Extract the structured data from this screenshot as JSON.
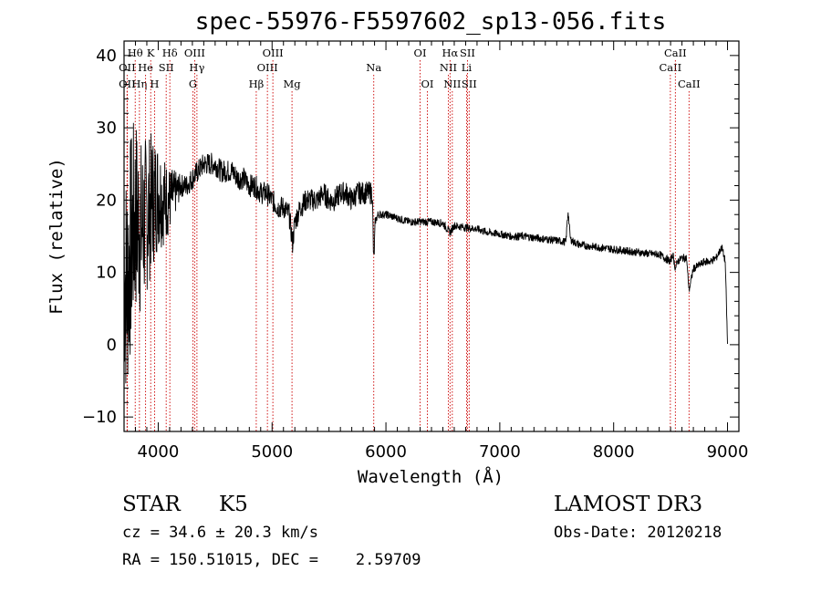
{
  "chart_data": {
    "type": "line",
    "title": "spec-55976-F5597602_sp13-056.fits",
    "xlabel": "Wavelength (Å)",
    "ylabel": "Flux (relative)",
    "xlim": [
      3700,
      9100
    ],
    "ylim": [
      -12,
      42
    ],
    "xticks": [
      4000,
      5000,
      6000,
      7000,
      8000,
      9000
    ],
    "yticks": [
      -10,
      0,
      10,
      20,
      30,
      40
    ],
    "grid": false,
    "series": [
      {
        "name": "spectrum",
        "noise_region": {
          "x_start": 3700,
          "x_end": 4200,
          "amplitude": 8
        },
        "x": [
          3700,
          3720,
          3760,
          3800,
          3850,
          3900,
          3950,
          4000,
          4050,
          4100,
          4150,
          4200,
          4250,
          4300,
          4350,
          4400,
          4450,
          4500,
          4550,
          4600,
          4650,
          4700,
          4750,
          4800,
          4850,
          4900,
          4950,
          5000,
          5050,
          5100,
          5150,
          5180,
          5200,
          5250,
          5300,
          5350,
          5400,
          5450,
          5500,
          5550,
          5600,
          5650,
          5700,
          5750,
          5800,
          5850,
          5880,
          5893,
          5905,
          5930,
          6000,
          6100,
          6200,
          6300,
          6400,
          6500,
          6563,
          6600,
          6700,
          6800,
          6900,
          7000,
          7100,
          7200,
          7300,
          7400,
          7500,
          7580,
          7600,
          7620,
          7650,
          7700,
          7800,
          7900,
          8000,
          8100,
          8200,
          8300,
          8400,
          8498,
          8520,
          8542,
          8560,
          8600,
          8640,
          8662,
          8700,
          8750,
          8800,
          8850,
          8900,
          8950,
          8980,
          9000
        ],
        "y": [
          12,
          8,
          14,
          18,
          16,
          18,
          20,
          21,
          20,
          20,
          21,
          22,
          22,
          23,
          24,
          25,
          25,
          25,
          24,
          24,
          24,
          23,
          23,
          22,
          22,
          21,
          21,
          20,
          19,
          19,
          18,
          14,
          17,
          19,
          20,
          20,
          20,
          21,
          20,
          20,
          21,
          21,
          20,
          21,
          21,
          21,
          21,
          11,
          17,
          18,
          18,
          17.5,
          17,
          17,
          17,
          16.8,
          15.5,
          16.5,
          16.2,
          16,
          15.5,
          15.3,
          15,
          15,
          14.8,
          14.6,
          14.4,
          14.2,
          18.5,
          14.6,
          14.2,
          13.8,
          13.6,
          13.4,
          13.2,
          13,
          12.8,
          12.6,
          12.5,
          11.5,
          12.5,
          10.5,
          11.5,
          12,
          12,
          7.5,
          10.5,
          11,
          11.5,
          11.5,
          12,
          13.5,
          11.5,
          0
        ]
      }
    ],
    "line_markers": [
      {
        "label": "OII",
        "x": 3727,
        "row": 2
      },
      {
        "label": "OII",
        "x": 3727,
        "row": 3
      },
      {
        "label": "Hθ",
        "x": 3798,
        "row": 1
      },
      {
        "label": "Hη",
        "x": 3835,
        "row": 3
      },
      {
        "label": "He",
        "x": 3889,
        "row": 2
      },
      {
        "label": "K",
        "x": 3934,
        "row": 1
      },
      {
        "label": "H",
        "x": 3968,
        "row": 3
      },
      {
        "label": "SII",
        "x": 4070,
        "row": 2
      },
      {
        "label": "Hδ",
        "x": 4102,
        "row": 1
      },
      {
        "label": "OIII",
        "x": 4320,
        "row": 1
      },
      {
        "label": "Hγ",
        "x": 4340,
        "row": 2
      },
      {
        "label": "G",
        "x": 4305,
        "row": 3
      },
      {
        "label": "Hβ",
        "x": 4861,
        "row": 3
      },
      {
        "label": "OIII",
        "x": 4959,
        "row": 2
      },
      {
        "label": "OIII",
        "x": 5007,
        "row": 1
      },
      {
        "label": "Mg",
        "x": 5175,
        "row": 3
      },
      {
        "label": "Na",
        "x": 5893,
        "row": 2
      },
      {
        "label": "OI",
        "x": 6300,
        "row": 1
      },
      {
        "label": "OI",
        "x": 6364,
        "row": 3
      },
      {
        "label": "NII",
        "x": 6548,
        "row": 2
      },
      {
        "label": "Hα",
        "x": 6563,
        "row": 1
      },
      {
        "label": "NII",
        "x": 6583,
        "row": 3
      },
      {
        "label": "SII",
        "x": 6716,
        "row": 1
      },
      {
        "label": "Li",
        "x": 6708,
        "row": 2
      },
      {
        "label": "SII",
        "x": 6731,
        "row": 3
      },
      {
        "label": "CaII",
        "x": 8498,
        "row": 2
      },
      {
        "label": "CaII",
        "x": 8542,
        "row": 1
      },
      {
        "label": "CaII",
        "x": 8662,
        "row": 3
      }
    ]
  },
  "info": {
    "class": "STAR",
    "subclass": "K5",
    "survey": "LAMOST DR3",
    "cz": "cz = 34.6 ± 20.3 km/s",
    "obs_date": "Obs-Date: 20120218",
    "radec": "RA = 150.51015, DEC =    2.59709"
  }
}
